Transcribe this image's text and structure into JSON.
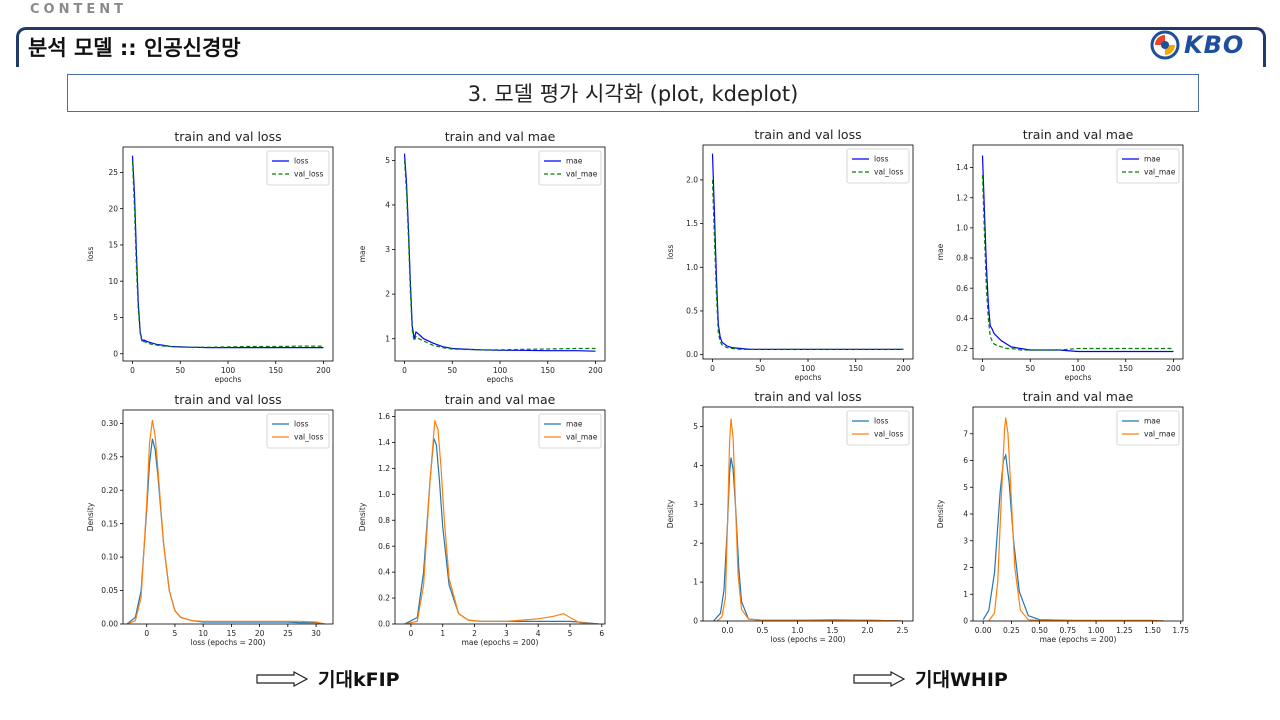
{
  "page": {
    "content_tag": "CONTENT",
    "header_title": "분석 모델 :: 인공신경망",
    "logo_text": "KBO",
    "section_title": "3. 모델 평가 시각화 (plot, kdeplot)",
    "result_left": "기대kFIP",
    "result_right": "기대WHIP"
  },
  "chart_data": [
    {
      "type": "line",
      "title": "train and val loss",
      "xlabel": "epochs",
      "ylabel": "loss",
      "xlim": [
        -10,
        210
      ],
      "ylim": [
        -1,
        28.5
      ],
      "xticks": [
        0,
        50,
        100,
        150,
        200
      ],
      "yticks": [
        0,
        5,
        10,
        15,
        20,
        25
      ],
      "legend": "top-right",
      "series": [
        {
          "name": "loss",
          "color": "#0000ff",
          "dash": false,
          "x": [
            0,
            2,
            4,
            6,
            8,
            10,
            12,
            15,
            20,
            25,
            30,
            40,
            50,
            60,
            80,
            100,
            120,
            150,
            180,
            200
          ],
          "y": [
            27.3,
            22,
            14,
            7,
            3,
            1.8,
            1.9,
            1.7,
            1.5,
            1.3,
            1.2,
            1.0,
            0.95,
            0.9,
            0.85,
            0.85,
            0.85,
            0.85,
            0.85,
            0.85
          ]
        },
        {
          "name": "val_loss",
          "color": "#008000",
          "dash": true,
          "x": [
            0,
            2,
            4,
            6,
            8,
            10,
            12,
            15,
            20,
            25,
            30,
            40,
            50,
            60,
            80,
            100,
            120,
            150,
            180,
            200
          ],
          "y": [
            26.5,
            20,
            12,
            6,
            2.8,
            1.6,
            1.7,
            1.5,
            1.3,
            1.2,
            1.1,
            1.0,
            0.9,
            0.9,
            0.9,
            0.95,
            1.0,
            1.0,
            1.05,
            1.05
          ]
        }
      ]
    },
    {
      "type": "line",
      "title": "train and val mae",
      "xlabel": "epochs",
      "ylabel": "mae",
      "xlim": [
        -10,
        210
      ],
      "ylim": [
        0.5,
        5.3
      ],
      "xticks": [
        0,
        50,
        100,
        150,
        200
      ],
      "yticks": [
        1,
        2,
        3,
        4,
        5
      ],
      "legend": "top-right",
      "series": [
        {
          "name": "mae",
          "color": "#0000ff",
          "dash": false,
          "x": [
            0,
            2,
            4,
            6,
            8,
            10,
            12,
            15,
            20,
            25,
            30,
            40,
            50,
            60,
            80,
            100,
            120,
            150,
            180,
            200
          ],
          "y": [
            5.15,
            4.5,
            3.5,
            2.3,
            1.3,
            1.0,
            1.15,
            1.1,
            1.0,
            0.95,
            0.9,
            0.82,
            0.78,
            0.77,
            0.75,
            0.74,
            0.74,
            0.73,
            0.73,
            0.72
          ]
        },
        {
          "name": "val_mae",
          "color": "#008000",
          "dash": true,
          "x": [
            0,
            2,
            4,
            6,
            8,
            10,
            12,
            15,
            20,
            25,
            30,
            40,
            50,
            60,
            80,
            100,
            120,
            150,
            180,
            200
          ],
          "y": [
            5.0,
            4.3,
            3.3,
            2.1,
            1.2,
            0.95,
            1.05,
            1.0,
            0.95,
            0.9,
            0.85,
            0.8,
            0.77,
            0.76,
            0.75,
            0.75,
            0.76,
            0.77,
            0.78,
            0.78
          ]
        }
      ]
    },
    {
      "type": "line",
      "title": "train and val loss",
      "xlabel": "epochs",
      "ylabel": "loss",
      "xlim": [
        -10,
        210
      ],
      "ylim": [
        -0.05,
        2.4
      ],
      "xticks": [
        0,
        50,
        100,
        150,
        200
      ],
      "yticks": [
        0.0,
        0.5,
        1.0,
        1.5,
        2.0
      ],
      "legend": "top-right",
      "series": [
        {
          "name": "loss",
          "color": "#0000ff",
          "dash": false,
          "x": [
            0,
            2,
            4,
            6,
            8,
            10,
            15,
            20,
            30,
            40,
            50,
            80,
            100,
            150,
            200
          ],
          "y": [
            2.3,
            1.6,
            0.9,
            0.35,
            0.2,
            0.14,
            0.1,
            0.08,
            0.07,
            0.06,
            0.06,
            0.06,
            0.06,
            0.06,
            0.06
          ]
        },
        {
          "name": "val_loss",
          "color": "#008000",
          "dash": true,
          "x": [
            0,
            2,
            4,
            6,
            8,
            10,
            15,
            20,
            30,
            40,
            50,
            80,
            100,
            150,
            200
          ],
          "y": [
            2.0,
            1.3,
            0.7,
            0.25,
            0.15,
            0.11,
            0.08,
            0.07,
            0.06,
            0.06,
            0.06,
            0.06,
            0.06,
            0.06,
            0.06
          ]
        }
      ]
    },
    {
      "type": "line",
      "title": "train and val mae",
      "xlabel": "epochs",
      "ylabel": "mae",
      "xlim": [
        -10,
        210
      ],
      "ylim": [
        0.13,
        1.55
      ],
      "xticks": [
        0,
        50,
        100,
        150,
        200
      ],
      "yticks": [
        0.2,
        0.4,
        0.6,
        0.8,
        1.0,
        1.2,
        1.4
      ],
      "legend": "top-right",
      "series": [
        {
          "name": "mae",
          "color": "#0000ff",
          "dash": false,
          "x": [
            0,
            2,
            4,
            6,
            8,
            10,
            12,
            15,
            20,
            25,
            30,
            40,
            50,
            80,
            100,
            150,
            200
          ],
          "y": [
            1.48,
            1.1,
            0.75,
            0.5,
            0.35,
            0.33,
            0.3,
            0.28,
            0.25,
            0.23,
            0.21,
            0.2,
            0.19,
            0.19,
            0.18,
            0.18,
            0.18
          ]
        },
        {
          "name": "val_mae",
          "color": "#008000",
          "dash": true,
          "x": [
            0,
            2,
            4,
            6,
            8,
            10,
            12,
            15,
            20,
            25,
            30,
            40,
            50,
            80,
            100,
            150,
            200
          ],
          "y": [
            1.35,
            0.95,
            0.6,
            0.4,
            0.28,
            0.25,
            0.23,
            0.22,
            0.21,
            0.2,
            0.2,
            0.19,
            0.19,
            0.19,
            0.2,
            0.2,
            0.2
          ]
        }
      ]
    },
    {
      "type": "area",
      "title": "train and val loss",
      "xlabel": "loss (epochs = 200)",
      "ylabel": "Density",
      "xlim": [
        -4.2,
        33
      ],
      "ylim": [
        0,
        0.32
      ],
      "xticks": [
        0,
        5,
        10,
        15,
        20,
        25,
        30
      ],
      "yticks": [
        0.0,
        0.05,
        0.1,
        0.15,
        0.2,
        0.25,
        0.3
      ],
      "ytick_format": "2dec",
      "legend": "top-right",
      "series": [
        {
          "name": "loss",
          "color": "#1f77b4",
          "x": [
            -3.5,
            -2,
            -1,
            0,
            0.5,
            1,
            1.5,
            2,
            3,
            4,
            5,
            6,
            8,
            10,
            15,
            20,
            25,
            27,
            30,
            31.5
          ],
          "y": [
            0,
            0.01,
            0.05,
            0.17,
            0.24,
            0.277,
            0.26,
            0.22,
            0.12,
            0.05,
            0.02,
            0.01,
            0.005,
            0.003,
            0.003,
            0.003,
            0.003,
            0.002,
            0.002,
            0
          ]
        },
        {
          "name": "val_loss",
          "color": "#ff7f0e",
          "x": [
            -3.5,
            -2,
            -1,
            0,
            0.5,
            1,
            1.5,
            2,
            3,
            4,
            5,
            6,
            8,
            10,
            15,
            20,
            25,
            27,
            30,
            31.5
          ],
          "y": [
            0,
            0.005,
            0.04,
            0.18,
            0.27,
            0.305,
            0.28,
            0.23,
            0.12,
            0.05,
            0.02,
            0.01,
            0.005,
            0.004,
            0.004,
            0.004,
            0.004,
            0.004,
            0.003,
            0
          ]
        }
      ]
    },
    {
      "type": "area",
      "title": "train and val mae",
      "xlabel": "mae (epochs = 200)",
      "ylabel": "Density",
      "xlim": [
        -0.5,
        6.1
      ],
      "ylim": [
        0,
        1.65
      ],
      "xticks": [
        0,
        1,
        2,
        3,
        4,
        5,
        6
      ],
      "yticks": [
        0.0,
        0.2,
        0.4,
        0.6,
        0.8,
        1.0,
        1.2,
        1.4,
        1.6
      ],
      "ytick_format": "1dec",
      "legend": "top-right",
      "series": [
        {
          "name": "mae",
          "color": "#1f77b4",
          "x": [
            -0.2,
            0.2,
            0.4,
            0.6,
            0.72,
            0.8,
            0.9,
            1.0,
            1.2,
            1.5,
            1.8,
            2.2,
            3,
            4,
            4.6,
            5,
            5.5,
            5.9
          ],
          "y": [
            0,
            0.05,
            0.4,
            1.1,
            1.43,
            1.38,
            1.1,
            0.75,
            0.3,
            0.08,
            0.03,
            0.02,
            0.02,
            0.02,
            0.02,
            0.02,
            0.01,
            0
          ]
        },
        {
          "name": "val_mae",
          "color": "#ff7f0e",
          "x": [
            -0.2,
            0.2,
            0.4,
            0.6,
            0.75,
            0.85,
            0.95,
            1.05,
            1.2,
            1.5,
            1.8,
            2.2,
            3,
            4,
            4.5,
            4.8,
            5,
            5.3,
            5.9
          ],
          "y": [
            0,
            0.02,
            0.3,
            1.1,
            1.57,
            1.5,
            1.2,
            0.8,
            0.35,
            0.08,
            0.03,
            0.02,
            0.02,
            0.04,
            0.06,
            0.08,
            0.05,
            0.01,
            0
          ]
        }
      ]
    },
    {
      "type": "area",
      "title": "train and val loss",
      "xlabel": "loss (epochs = 200)",
      "ylabel": "Density",
      "xlim": [
        -0.35,
        2.65
      ],
      "ylim": [
        0,
        5.5
      ],
      "xticks": [
        0.0,
        0.5,
        1.0,
        1.5,
        2.0,
        2.5
      ],
      "yticks": [
        0,
        1,
        2,
        3,
        4,
        5
      ],
      "ytick_format": "int",
      "legend": "top-right",
      "series": [
        {
          "name": "loss",
          "color": "#1f77b4",
          "x": [
            -0.2,
            -0.1,
            -0.05,
            0,
            0.03,
            0.05,
            0.08,
            0.12,
            0.16,
            0.2,
            0.3,
            0.5,
            1,
            1.5,
            2,
            2.5
          ],
          "y": [
            0,
            0.2,
            0.8,
            2.5,
            3.8,
            4.2,
            3.9,
            2.8,
            1.4,
            0.5,
            0.05,
            0.02,
            0.02,
            0.03,
            0.02,
            0
          ]
        },
        {
          "name": "val_loss",
          "color": "#ff7f0e",
          "x": [
            -0.15,
            -0.08,
            -0.03,
            0,
            0.03,
            0.05,
            0.08,
            0.11,
            0.15,
            0.2,
            0.3,
            0.5,
            1,
            1.5,
            2,
            2.5
          ],
          "y": [
            0,
            0.1,
            0.6,
            2.5,
            4.6,
            5.2,
            4.7,
            3.2,
            1.2,
            0.3,
            0.05,
            0.02,
            0.02,
            0.02,
            0.02,
            0
          ]
        }
      ]
    },
    {
      "type": "area",
      "title": "train and val mae",
      "xlabel": "mae (epochs = 200)",
      "ylabel": "Density",
      "xlim": [
        -0.09,
        1.77
      ],
      "ylim": [
        0,
        8
      ],
      "xticks": [
        0.0,
        0.25,
        0.5,
        0.75,
        1.0,
        1.25,
        1.5,
        1.75
      ],
      "yticks": [
        0,
        1,
        2,
        3,
        4,
        5,
        6,
        7
      ],
      "ytick_format": "int",
      "legend": "top-right",
      "series": [
        {
          "name": "mae",
          "color": "#1f77b4",
          "x": [
            0,
            0.05,
            0.1,
            0.15,
            0.18,
            0.2,
            0.23,
            0.27,
            0.32,
            0.4,
            0.5,
            0.8,
            1.2,
            1.5,
            1.6
          ],
          "y": [
            0.05,
            0.4,
            1.8,
            4.8,
            6.0,
            6.2,
            5.2,
            3.0,
            1.1,
            0.2,
            0.05,
            0.02,
            0.02,
            0.02,
            0
          ]
        },
        {
          "name": "val_mae",
          "color": "#ff7f0e",
          "x": [
            0.05,
            0.1,
            0.13,
            0.16,
            0.19,
            0.2,
            0.22,
            0.25,
            0.28,
            0.33,
            0.4,
            0.5,
            0.8,
            1.2,
            1.5,
            1.6
          ],
          "y": [
            0,
            0.3,
            1.5,
            4.5,
            7.2,
            7.6,
            7.0,
            4.5,
            2.0,
            0.4,
            0.05,
            0.02,
            0.02,
            0.02,
            0.02,
            0
          ]
        }
      ]
    }
  ]
}
